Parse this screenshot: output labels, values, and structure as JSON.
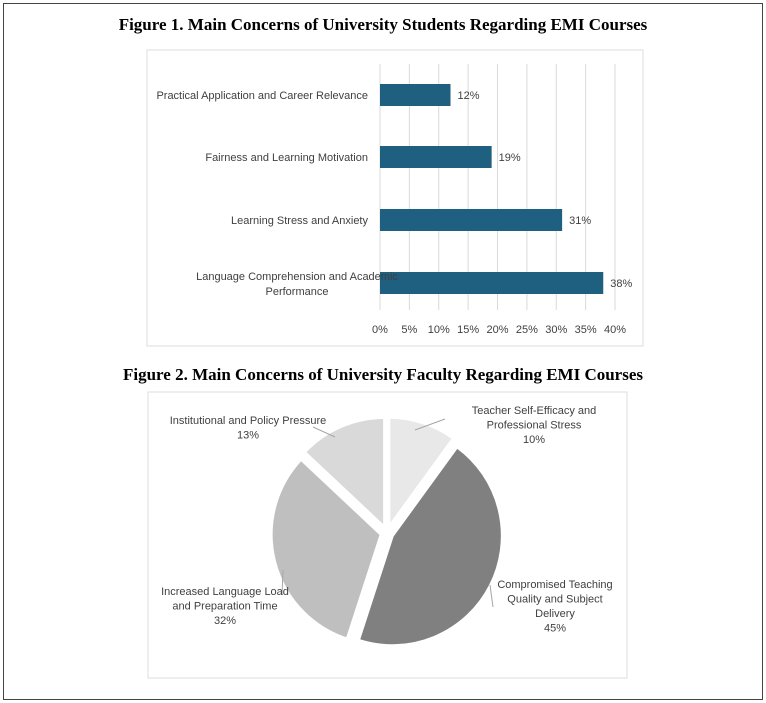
{
  "chart_data": [
    {
      "type": "bar",
      "orientation": "horizontal",
      "title": "Figure 1. Main Concerns of University Students Regarding EMI Courses",
      "categories": [
        "Practical Application and Career Relevance",
        "Fairness and Learning Motivation",
        "Learning Stress and Anxiety",
        "Language Comprehension and Academic Performance"
      ],
      "values": [
        12,
        19,
        31,
        38
      ],
      "data_labels": [
        "12%",
        "19%",
        "31%",
        "38%"
      ],
      "xlim": [
        0,
        40
      ],
      "xticks": [
        "0%",
        "5%",
        "10%",
        "15%",
        "20%",
        "25%",
        "30%",
        "35%",
        "40%"
      ],
      "grid": true,
      "color": "#1f5f80"
    },
    {
      "type": "pie",
      "title": "Figure 2. Main Concerns of University Faculty Regarding EMI Courses",
      "slices": [
        {
          "label": "Teacher Self-Efficacy and Professional Stress",
          "value": 10,
          "pct_label": "10%",
          "color": "#e8e8e8"
        },
        {
          "label": "Compromised Teaching Quality and Subject Delivery",
          "value": 45,
          "pct_label": "45%",
          "color": "#808080"
        },
        {
          "label": "Increased Language Load and Preparation Time",
          "value": 32,
          "pct_label": "32%",
          "color": "#bfbfbf"
        },
        {
          "label": "Institutional and Policy Pressure",
          "value": 13,
          "pct_label": "13%",
          "color": "#d9d9d9"
        }
      ]
    }
  ]
}
